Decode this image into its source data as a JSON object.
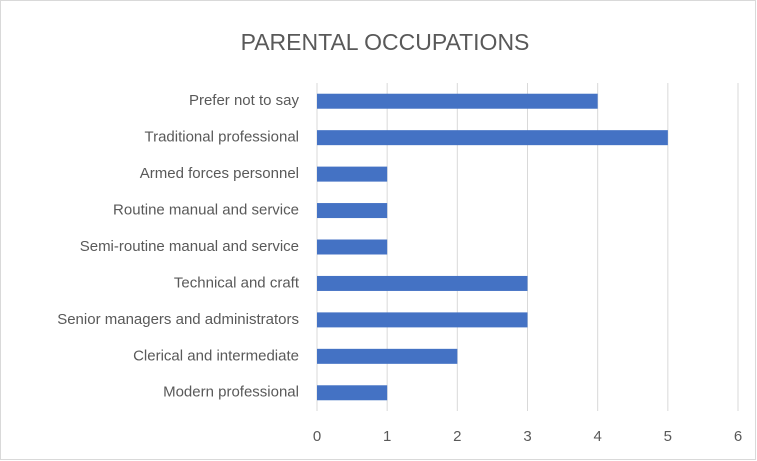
{
  "chart_data": {
    "type": "hbar",
    "title": "PARENTAL OCCUPATIONS",
    "categories": [
      "Modern professional",
      "Clerical and intermediate",
      "Senior managers and administrators",
      "Technical and craft",
      "Semi-routine manual and service",
      "Routine manual and service",
      "Armed forces personnel",
      "Traditional professional",
      "Prefer not to say"
    ],
    "values": [
      1,
      2,
      3,
      3,
      1,
      1,
      1,
      5,
      4
    ],
    "color": "#4472c4",
    "xlim": [
      0,
      6
    ],
    "xticks": [
      0,
      1,
      2,
      3,
      4,
      5,
      6
    ],
    "grid": true
  }
}
